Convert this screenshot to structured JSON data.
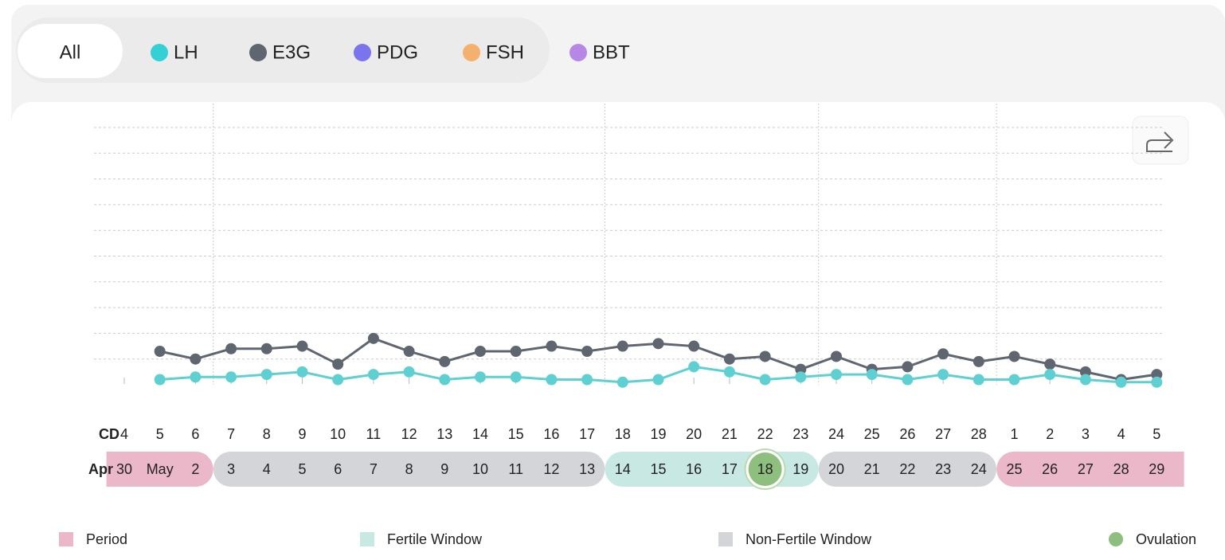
{
  "tabs": [
    {
      "label": "All"
    },
    {
      "label": "LH",
      "color": "#33d1d6"
    },
    {
      "label": "E3G",
      "color": "#5f6670"
    },
    {
      "label": "PDG",
      "color": "#7a74ee"
    },
    {
      "label": "FSH",
      "color": "#f5b06e"
    },
    {
      "label": "BBT",
      "color": "#b787e6"
    }
  ],
  "chart_data": {
    "type": "line",
    "cd_label": "CD",
    "categories": [
      4,
      5,
      6,
      7,
      8,
      9,
      10,
      11,
      12,
      13,
      14,
      15,
      16,
      17,
      18,
      19,
      20,
      21,
      22,
      23,
      24,
      25,
      26,
      27,
      28,
      1,
      2,
      3,
      4,
      5
    ],
    "date_prefix": "Apr",
    "dates": [
      "30",
      "May",
      "2",
      "3",
      "4",
      "5",
      "6",
      "7",
      "8",
      "9",
      "10",
      "11",
      "12",
      "13",
      "14",
      "15",
      "16",
      "17",
      "18",
      "19",
      "20",
      "21",
      "22",
      "23",
      "24",
      "25",
      "26",
      "27",
      "28",
      "29"
    ],
    "phases": [
      "period",
      "period",
      "period",
      "non-fertile",
      "non-fertile",
      "non-fertile",
      "non-fertile",
      "non-fertile",
      "non-fertile",
      "non-fertile",
      "non-fertile",
      "non-fertile",
      "non-fertile",
      "non-fertile",
      "fertile",
      "fertile",
      "fertile",
      "fertile",
      "ovulation",
      "fertile",
      "non-fertile",
      "non-fertile",
      "non-fertile",
      "non-fertile",
      "non-fertile",
      "period",
      "period",
      "period",
      "period",
      "period"
    ],
    "phase_colors": {
      "period": "#eab8c8",
      "fertile": "#c8e8e4",
      "non-fertile": "#d3d5d9",
      "ovulation": "#8fbf7f"
    },
    "ylim": [
      0,
      10
    ],
    "yticks": [
      1,
      2,
      3,
      4,
      5,
      6,
      7,
      8,
      9,
      10
    ],
    "grid": true,
    "series": [
      {
        "name": "E3G",
        "color": "#5f6670",
        "values": [
          null,
          1.3,
          1.0,
          1.4,
          1.4,
          1.5,
          0.8,
          1.8,
          1.3,
          0.9,
          1.3,
          1.3,
          1.5,
          1.3,
          1.5,
          1.6,
          1.5,
          1.0,
          1.1,
          0.6,
          1.1,
          0.6,
          0.7,
          1.2,
          0.9,
          1.1,
          0.8,
          0.5,
          0.2,
          0.4
        ]
      },
      {
        "name": "LH",
        "color": "#5fd0d2",
        "values": [
          null,
          0.2,
          0.3,
          0.3,
          0.4,
          0.5,
          0.2,
          0.4,
          0.5,
          0.2,
          0.3,
          0.3,
          0.2,
          0.2,
          0.1,
          0.2,
          0.7,
          0.5,
          0.2,
          0.3,
          0.4,
          0.4,
          0.2,
          0.4,
          0.2,
          0.2,
          0.4,
          0.2,
          0.1,
          0.1
        ]
      }
    ],
    "legend": [
      {
        "name": "Period",
        "color": "#eab8c8"
      },
      {
        "name": "Fertile Window",
        "color": "#c8e8e4"
      },
      {
        "name": "Non-Fertile Window",
        "color": "#d3d5d9"
      },
      {
        "name": "Ovulation",
        "color": "#8fbf7f"
      }
    ]
  }
}
